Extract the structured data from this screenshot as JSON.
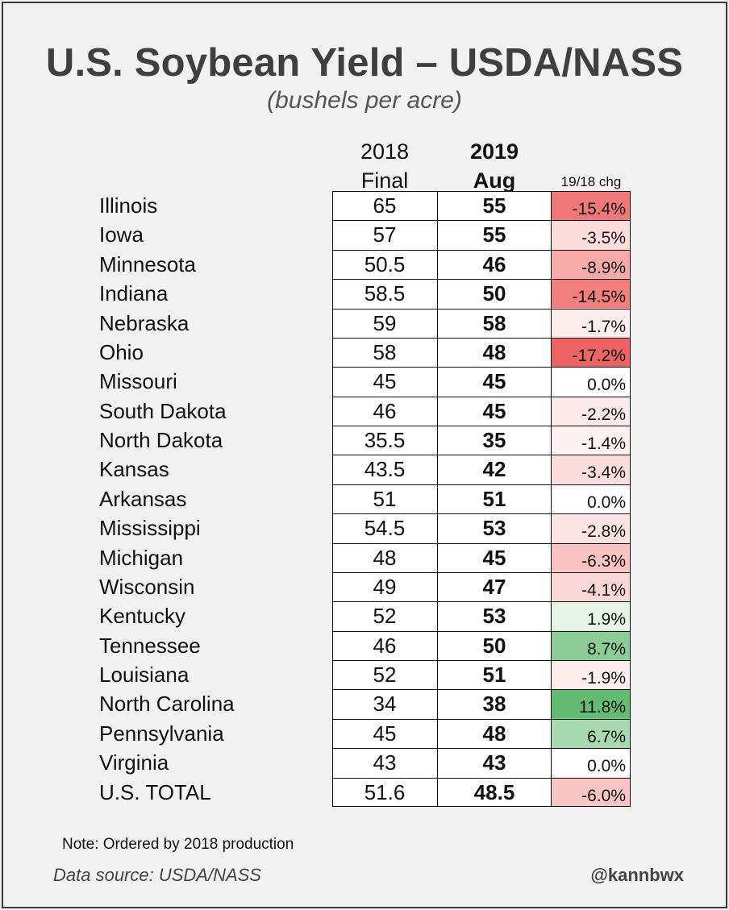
{
  "chart_data": {
    "type": "table",
    "title": "U.S. Soybean Yield – USDA/NASS",
    "subtitle": "(bushels per acre)",
    "columns": {
      "y2018": [
        "2018",
        "Final"
      ],
      "y2019": [
        "2019",
        "Aug"
      ],
      "change": "19/18 chg"
    },
    "rows": [
      {
        "state": "Illinois",
        "y2018": "65",
        "y2019": "55",
        "chg": "-15.4%",
        "color": "#f07878"
      },
      {
        "state": "Iowa",
        "y2018": "57",
        "y2019": "55",
        "chg": "-3.5%",
        "color": "#fcdcdc"
      },
      {
        "state": "Minnesota",
        "y2018": "50.5",
        "y2019": "46",
        "chg": "-8.9%",
        "color": "#f7aaaa"
      },
      {
        "state": "Indiana",
        "y2018": "58.5",
        "y2019": "50",
        "chg": "-14.5%",
        "color": "#f27e7e"
      },
      {
        "state": "Nebraska",
        "y2018": "59",
        "y2019": "58",
        "chg": "-1.7%",
        "color": "#fdeeee"
      },
      {
        "state": "Ohio",
        "y2018": "58",
        "y2019": "48",
        "chg": "-17.2%",
        "color": "#ee6464"
      },
      {
        "state": "Missouri",
        "y2018": "45",
        "y2019": "45",
        "chg": "0.0%",
        "color": "#ffffff"
      },
      {
        "state": "South Dakota",
        "y2018": "46",
        "y2019": "45",
        "chg": "-2.2%",
        "color": "#fce9e9"
      },
      {
        "state": "North Dakota",
        "y2018": "35.5",
        "y2019": "35",
        "chg": "-1.4%",
        "color": "#fdf0f0"
      },
      {
        "state": "Kansas",
        "y2018": "43.5",
        "y2019": "42",
        "chg": "-3.4%",
        "color": "#fcdddd"
      },
      {
        "state": "Arkansas",
        "y2018": "51",
        "y2019": "51",
        "chg": "0.0%",
        "color": "#ffffff"
      },
      {
        "state": "Mississippi",
        "y2018": "54.5",
        "y2019": "53",
        "chg": "-2.8%",
        "color": "#fce3e3"
      },
      {
        "state": "Michigan",
        "y2018": "48",
        "y2019": "45",
        "chg": "-6.3%",
        "color": "#f9c3c3"
      },
      {
        "state": "Wisconsin",
        "y2018": "49",
        "y2019": "47",
        "chg": "-4.1%",
        "color": "#fbd6d6"
      },
      {
        "state": "Kentucky",
        "y2018": "52",
        "y2019": "53",
        "chg": "1.9%",
        "color": "#e6f4e8"
      },
      {
        "state": "Tennessee",
        "y2018": "46",
        "y2019": "50",
        "chg": "8.7%",
        "color": "#8ccd97"
      },
      {
        "state": "Louisiana",
        "y2018": "52",
        "y2019": "51",
        "chg": "-1.9%",
        "color": "#fdeded"
      },
      {
        "state": "North Carolina",
        "y2018": "34",
        "y2019": "38",
        "chg": "11.8%",
        "color": "#63bb74"
      },
      {
        "state": "Pennsylvania",
        "y2018": "45",
        "y2019": "48",
        "chg": "6.7%",
        "color": "#a8d9b0"
      },
      {
        "state": "Virginia",
        "y2018": "43",
        "y2019": "43",
        "chg": "0.0%",
        "color": "#ffffff"
      },
      {
        "state": "U.S. TOTAL",
        "y2018": "51.6",
        "y2019": "48.5",
        "chg": "-6.0%",
        "color": "#f9c6c6"
      }
    ]
  },
  "footer": {
    "note": "Note: Ordered by 2018 production",
    "source": "Data source: USDA/NASS",
    "handle": "@kannbwx"
  }
}
